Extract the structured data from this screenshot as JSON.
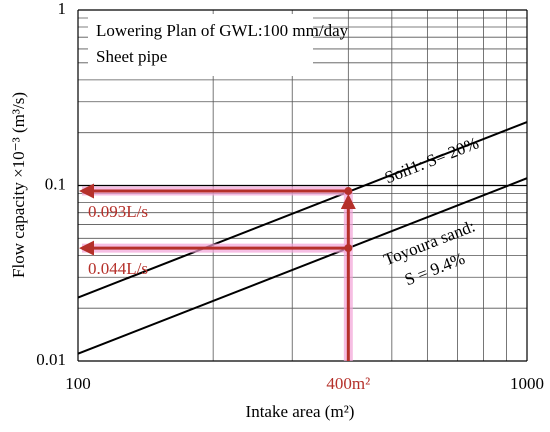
{
  "chart_data": {
    "type": "line",
    "xlabel": "Intake area (m²)",
    "ylabel": "Flow capacity ×10⁻³ (m³/s)",
    "log_x": true,
    "log_y": true,
    "grid": true,
    "xlim": [
      100,
      1000
    ],
    "xticks": [
      100,
      1000
    ],
    "ylim": [
      0.01,
      1
    ],
    "yticks": [
      0.01,
      0.1,
      1
    ],
    "xgrid_minor": [
      200,
      300,
      400,
      500,
      600,
      700,
      800,
      900
    ],
    "ygrid_minor": [
      0.02,
      0.03,
      0.04,
      0.05,
      0.06,
      0.07,
      0.08,
      0.09,
      0.2,
      0.3,
      0.4,
      0.5,
      0.6,
      0.7,
      0.8,
      0.9
    ],
    "annotations": [
      "Lowering Plan of GWL:100 mm/day",
      "Sheet pipe"
    ],
    "series": [
      {
        "name": "Soil1: S= 20%",
        "color": "#000000",
        "x": [
          100,
          1000
        ],
        "values": [
          0.023,
          0.23
        ]
      },
      {
        "name": "Toyoura sand:",
        "name_line2": "S = 9.4%",
        "color": "#000000",
        "x": [
          100,
          1000
        ],
        "values": [
          0.011,
          0.11
        ]
      }
    ],
    "points": {
      "color": "#b5302a",
      "x": [
        400,
        400
      ],
      "values": [
        0.093,
        0.044
      ],
      "value_labels": [
        "0.093L/s",
        "0.044L/s"
      ]
    },
    "marker_x": {
      "value": 400,
      "label": "400m²"
    }
  }
}
